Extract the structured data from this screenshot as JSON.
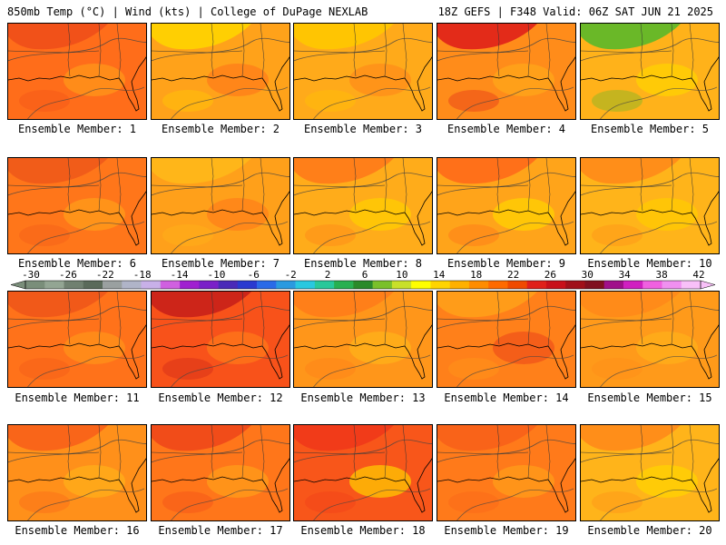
{
  "header": {
    "left_title": "850mb Temp (°C) | Wind (kts) | College of DuPage NEXLAB",
    "right_title": "18Z GEFS | F348 Valid: 06Z SAT JUN 21 2025"
  },
  "members": [
    {
      "label": "Ensemble Member: 1",
      "base": "#ff6d1a",
      "top": "#f04e1a",
      "spot": "#ff9a1a"
    },
    {
      "label": "Ensemble Member: 2",
      "base": "#ffa21a",
      "top": "#ffd400",
      "spot": "#ff7a1a"
    },
    {
      "label": "Ensemble Member: 3",
      "base": "#ffaa1a",
      "top": "#ffc800",
      "spot": "#ff8a1a"
    },
    {
      "label": "Ensemble Member: 4",
      "base": "#ff8c1a",
      "top": "#e0201a",
      "spot": "#ffa81a"
    },
    {
      "label": "Ensemble Member: 5",
      "base": "#ffb21a",
      "top": "#5ab82a",
      "spot": "#ffd400"
    },
    {
      "label": "Ensemble Member: 6",
      "base": "#ff761a",
      "top": "#f05a1a",
      "spot": "#ffa01a"
    },
    {
      "label": "Ensemble Member: 7",
      "base": "#ffa01a",
      "top": "#ffb81a",
      "spot": "#ff7e1a"
    },
    {
      "label": "Ensemble Member: 8",
      "base": "#ffac1a",
      "top": "#ff7a1a",
      "spot": "#ffd000"
    },
    {
      "label": "Ensemble Member: 9",
      "base": "#ffa41a",
      "top": "#ff6a1a",
      "spot": "#ffd400"
    },
    {
      "label": "Ensemble Member: 10",
      "base": "#ffb41a",
      "top": "#ff8a1a",
      "spot": "#ffcc00"
    },
    {
      "label": "Ensemble Member: 11",
      "base": "#ff721a",
      "top": "#f0561a",
      "spot": "#ff941a"
    },
    {
      "label": "Ensemble Member: 12",
      "base": "#f8521a",
      "top": "#c8201a",
      "spot": "#ff7a1a"
    },
    {
      "label": "Ensemble Member: 13",
      "base": "#ff961a",
      "top": "#ff7c1a",
      "spot": "#ffb41a"
    },
    {
      "label": "Ensemble Member: 14",
      "base": "#ff801a",
      "top": "#ff9e1a",
      "spot": "#f0501a"
    },
    {
      "label": "Ensemble Member: 15",
      "base": "#ff9a1a",
      "top": "#ff8a1a",
      "spot": "#ffb01a"
    },
    {
      "label": "Ensemble Member: 16",
      "base": "#ff901a",
      "top": "#f8601a",
      "spot": "#ffb01a"
    },
    {
      "label": "Ensemble Member: 17",
      "base": "#ff761a",
      "top": "#f0481a",
      "spot": "#ffa01a"
    },
    {
      "label": "Ensemble Member: 18",
      "base": "#f8561a",
      "top": "#f0381a",
      "spot": "#ffd000"
    },
    {
      "label": "Ensemble Member: 19",
      "base": "#ff7a1a",
      "top": "#f8601a",
      "spot": "#ffa01a"
    },
    {
      "label": "Ensemble Member: 20",
      "base": "#ffb41a",
      "top": "#ff8a1a",
      "spot": "#ffd400"
    }
  ],
  "colorbar": {
    "ticks": [
      "-30",
      "-26",
      "-22",
      "-18",
      "-14",
      "-10",
      "-6",
      "-2",
      "2",
      "6",
      "10",
      "14",
      "18",
      "22",
      "26",
      "30",
      "34",
      "38",
      "42"
    ],
    "colors": [
      "#7a8e7a",
      "#93a593",
      "#708070",
      "#5a6a5a",
      "#9aa0a0",
      "#b0b4c8",
      "#c8b0e8",
      "#d060e0",
      "#a020d0",
      "#7a20c8",
      "#4a2ab8",
      "#2a3ad0",
      "#2a6ae8",
      "#2a9ae0",
      "#28c8e0",
      "#28c89a",
      "#28b050",
      "#2a8a2a",
      "#7ac02a",
      "#c8e02a",
      "#ffff00",
      "#ffd400",
      "#ffb000",
      "#ff8c00",
      "#ff6a00",
      "#f04a00",
      "#e0201a",
      "#c8101a",
      "#a0101a",
      "#801020",
      "#a0108a",
      "#d020c0",
      "#f060e0",
      "#f090f0",
      "#f8c0f8"
    ]
  }
}
